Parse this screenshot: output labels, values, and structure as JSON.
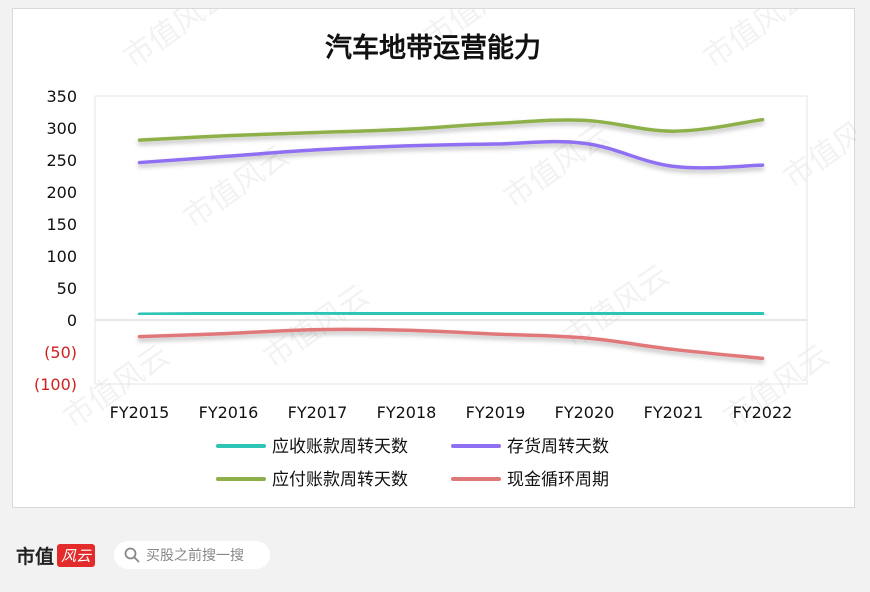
{
  "chart_data": {
    "type": "line",
    "title": "汽车地带运营能力",
    "categories": [
      "FY2015",
      "FY2016",
      "FY2017",
      "FY2018",
      "FY2019",
      "FY2020",
      "FY2021",
      "FY2022"
    ],
    "ylim": [
      -100,
      350
    ],
    "yticks": [
      350,
      300,
      250,
      200,
      150,
      100,
      50,
      0,
      -50,
      -100
    ],
    "ytick_labels": [
      "350",
      "300",
      "250",
      "200",
      "150",
      "100",
      "50",
      "0",
      "(50)",
      "(100)"
    ],
    "grid": false,
    "legend_position": "bottom",
    "series": [
      {
        "name": "应收账款周转天数",
        "color": "#2ec4b6",
        "values": [
          9,
          10,
          11,
          10,
          10,
          10,
          10,
          10
        ]
      },
      {
        "name": "存货周转天数",
        "color": "#8f6ff2",
        "values": [
          246,
          256,
          266,
          272,
          275,
          276,
          240,
          242
        ]
      },
      {
        "name": "应付账款周转天数",
        "color": "#8db04a",
        "values": [
          281,
          288,
          293,
          298,
          307,
          312,
          295,
          313
        ]
      },
      {
        "name": "现金循环周期",
        "color": "#e0787a",
        "values": [
          -26,
          -21,
          -15,
          -16,
          -22,
          -28,
          -46,
          -60
        ]
      }
    ],
    "negative_tick_color": "#d22020"
  },
  "footer": {
    "brand": "市值",
    "brand_logo": "风云",
    "search_placeholder": "买股之前搜一搜",
    "search_icon": "search-icon"
  },
  "watermark": "市值风云"
}
